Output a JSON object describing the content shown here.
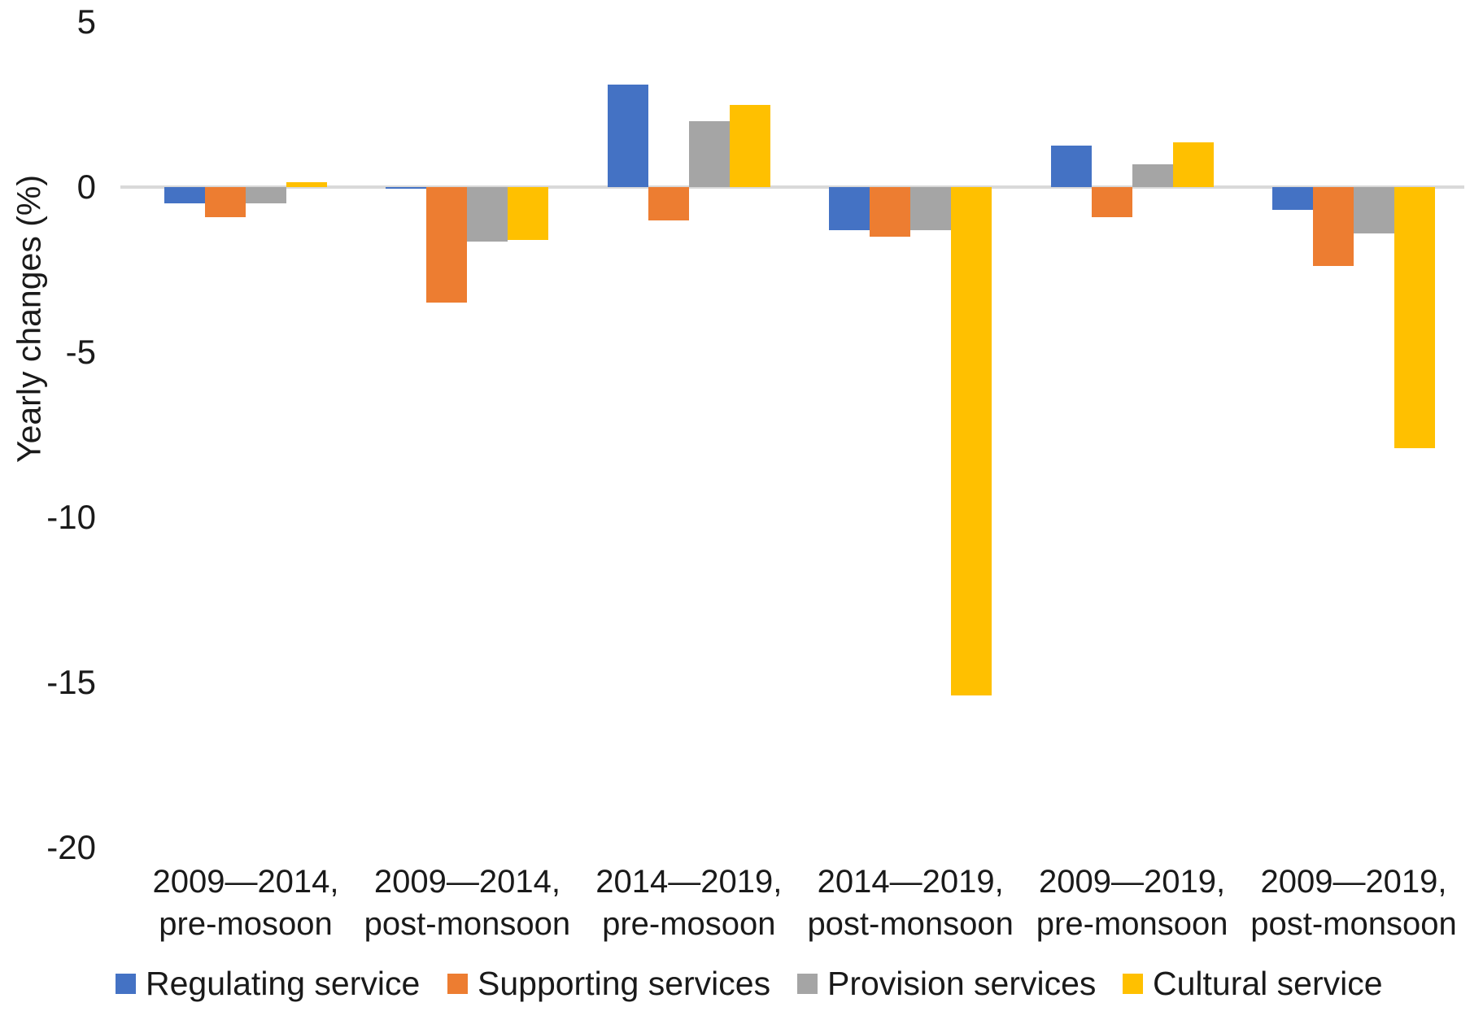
{
  "chart_data": {
    "type": "bar",
    "title": "",
    "xlabel": "",
    "ylabel": "Yearly changes (%)",
    "ylim": [
      -20,
      5
    ],
    "yticks": [
      5,
      0,
      -5,
      -10,
      -15,
      -20
    ],
    "grid": false,
    "legend_position": "bottom",
    "axis_color": "#D9D9D9",
    "text_color": "#1a1a1a",
    "categories": [
      "2009—2014,\npre-mosoon",
      "2009—2014,\npost-monsoon",
      "2014—2019,\npre-mosoon",
      "2014—2019,\npost-monsoon",
      "2009—2019,\npre-monsoon",
      "2009—2019,\npost-monsoon"
    ],
    "series": [
      {
        "name": "Regulating service",
        "color": "#4472C4",
        "values": [
          -0.5,
          -0.05,
          3.1,
          -1.3,
          1.25,
          -0.7
        ]
      },
      {
        "name": "Supporting services",
        "color": "#ED7D31",
        "values": [
          -0.9,
          -3.5,
          -1.0,
          -1.5,
          -0.9,
          -2.4
        ]
      },
      {
        "name": "Provision services",
        "color": "#A5A5A5",
        "values": [
          -0.5,
          -1.65,
          2.0,
          -1.3,
          0.7,
          -1.4
        ]
      },
      {
        "name": "Cultural service",
        "color": "#FFC000",
        "values": [
          0.15,
          -1.6,
          2.5,
          -15.4,
          1.35,
          -7.9
        ]
      }
    ]
  }
}
